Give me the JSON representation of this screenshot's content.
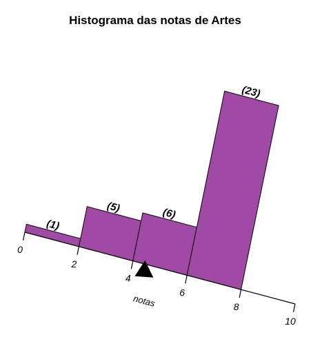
{
  "chart_data": {
    "type": "bar",
    "title": "Histograma das notas de Artes",
    "xlabel": "notas",
    "ylabel": "",
    "bins": [
      {
        "start": 0,
        "end": 2,
        "count": 1,
        "label": "(1)"
      },
      {
        "start": 2,
        "end": 4,
        "count": 5,
        "label": "(5)"
      },
      {
        "start": 4,
        "end": 6,
        "count": 6,
        "label": "(6)"
      },
      {
        "start": 6,
        "end": 8,
        "count": 23,
        "label": "(23)"
      }
    ],
    "x_ticks": [
      "0",
      "2",
      "4",
      "6",
      "8",
      "10"
    ],
    "xlim": [
      0,
      10
    ],
    "marker_value": 4.5,
    "bar_color": "#a04aa5",
    "grid": false
  }
}
